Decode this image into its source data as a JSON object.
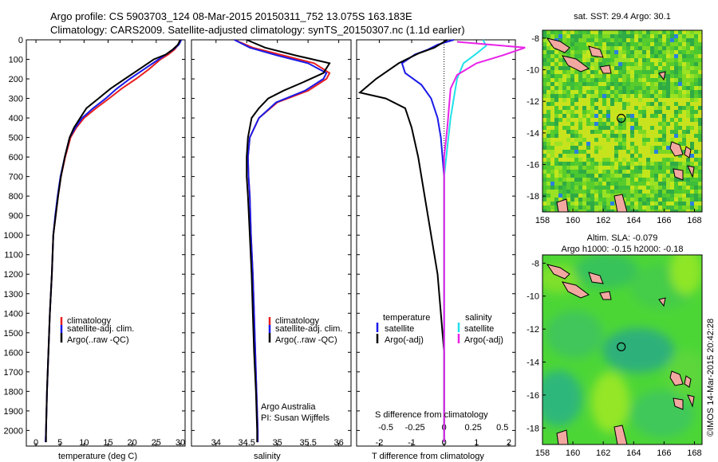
{
  "header": {
    "line1": "Argo profile: CS 5903703_124 08-Mar-2015 20150311_752 13.075S 163.183E",
    "line2": "Climatology: CARS2009. Satellite-adjusted climatology: synTS_20150307.nc (1.1d earlier)"
  },
  "colors": {
    "climatology": "#e82020",
    "satellite": "#1a1ae8",
    "argo": "#000000",
    "salinity_sat": "#22e0e8",
    "argo_adj": "#e822e8"
  },
  "credits": {
    "line1": "Argo Australia",
    "line2": "PI: Susan Wijffels",
    "imos": "©IMOS 14-Mar-2015 20:42:28"
  },
  "chart_data": [
    {
      "type": "line",
      "xlabel": "temperature (deg C)",
      "ylabel": "",
      "xlim": [
        -2,
        31
      ],
      "ylim": [
        2080,
        0
      ],
      "xticks": [
        0,
        5,
        10,
        15,
        20,
        25,
        30
      ],
      "yticks": [
        0,
        100,
        200,
        300,
        400,
        500,
        600,
        700,
        800,
        900,
        1000,
        1100,
        1200,
        1300,
        1400,
        1500,
        1600,
        1700,
        1800,
        1900,
        2000
      ],
      "legend": [
        "climatology",
        "satellite-adj. clim.",
        "Argo(..raw -QC)"
      ],
      "series": [
        {
          "name": "climatology",
          "color": "#e82020",
          "points": [
            [
              29.9,
              0
            ],
            [
              29.6,
              25
            ],
            [
              28.8,
              50
            ],
            [
              27.5,
              75
            ],
            [
              25.9,
              100
            ],
            [
              23.5,
              150
            ],
            [
              20.8,
              200
            ],
            [
              17.8,
              250
            ],
            [
              15.2,
              300
            ],
            [
              12.5,
              350
            ],
            [
              10.0,
              400
            ],
            [
              8.4,
              450
            ],
            [
              7.2,
              500
            ],
            [
              6.1,
              600
            ],
            [
              5.2,
              700
            ],
            [
              4.6,
              800
            ],
            [
              4.1,
              900
            ],
            [
              3.6,
              1000
            ],
            [
              3.3,
              1200
            ],
            [
              2.9,
              1400
            ],
            [
              2.6,
              1600
            ],
            [
              2.3,
              1800
            ],
            [
              2.1,
              2000
            ],
            [
              2.0,
              2060
            ]
          ]
        },
        {
          "name": "satellite-adj. clim.",
          "color": "#1a1ae8",
          "points": [
            [
              30.2,
              0
            ],
            [
              29.7,
              25
            ],
            [
              28.5,
              50
            ],
            [
              27.0,
              75
            ],
            [
              25.5,
              100
            ],
            [
              22.5,
              150
            ],
            [
              19.5,
              200
            ],
            [
              16.8,
              250
            ],
            [
              14.5,
              300
            ],
            [
              11.9,
              350
            ],
            [
              9.6,
              400
            ],
            [
              8.2,
              450
            ],
            [
              7.0,
              500
            ],
            [
              6.0,
              600
            ],
            [
              5.1,
              700
            ],
            [
              4.5,
              800
            ],
            [
              4.0,
              900
            ],
            [
              3.6,
              1000
            ],
            [
              3.3,
              1200
            ],
            [
              2.9,
              1400
            ],
            [
              2.6,
              1600
            ],
            [
              2.3,
              1800
            ],
            [
              2.1,
              2000
            ],
            [
              2.0,
              2060
            ]
          ]
        },
        {
          "name": "Argo(..raw -QC)",
          "color": "#000000",
          "points": [
            [
              30.0,
              0
            ],
            [
              29.5,
              25
            ],
            [
              28.4,
              50
            ],
            [
              27.0,
              75
            ],
            [
              24.5,
              100
            ],
            [
              21.5,
              150
            ],
            [
              18.5,
              200
            ],
            [
              15.5,
              250
            ],
            [
              13.0,
              300
            ],
            [
              10.5,
              350
            ],
            [
              9.2,
              400
            ],
            [
              7.9,
              450
            ],
            [
              7.0,
              500
            ],
            [
              6.0,
              600
            ],
            [
              5.2,
              700
            ],
            [
              4.6,
              800
            ],
            [
              4.1,
              900
            ],
            [
              3.6,
              1000
            ],
            [
              3.3,
              1200
            ],
            [
              2.9,
              1400
            ],
            [
              2.6,
              1600
            ],
            [
              2.3,
              1800
            ],
            [
              2.1,
              2000
            ],
            [
              2.1,
              2060
            ]
          ]
        }
      ]
    },
    {
      "type": "line",
      "xlabel": "salinity",
      "ylabel": "",
      "xlim": [
        33.6,
        36.2
      ],
      "ylim": [
        2080,
        0
      ],
      "xticks": [
        34,
        34.5,
        35,
        35.5,
        36
      ],
      "legend": [
        "climatology",
        "satellite-adj. clim.",
        "Argo(..raw -QC)"
      ],
      "series": [
        {
          "name": "climatology",
          "color": "#e82020",
          "points": [
            [
              34.3,
              0
            ],
            [
              34.6,
              40
            ],
            [
              35.1,
              80
            ],
            [
              35.6,
              120
            ],
            [
              35.85,
              170
            ],
            [
              35.8,
              200
            ],
            [
              35.5,
              260
            ],
            [
              35.0,
              320
            ],
            [
              34.7,
              400
            ],
            [
              34.55,
              500
            ],
            [
              34.52,
              600
            ],
            [
              34.53,
              700
            ],
            [
              34.55,
              800
            ],
            [
              34.57,
              1000
            ],
            [
              34.6,
              1200
            ],
            [
              34.62,
              1400
            ],
            [
              34.64,
              1600
            ],
            [
              34.66,
              1800
            ],
            [
              34.68,
              2000
            ],
            [
              34.68,
              2060
            ]
          ]
        },
        {
          "name": "satellite-adj. clim.",
          "color": "#1a1ae8",
          "points": [
            [
              34.3,
              0
            ],
            [
              34.55,
              40
            ],
            [
              35.0,
              80
            ],
            [
              35.5,
              120
            ],
            [
              35.8,
              170
            ],
            [
              35.75,
              200
            ],
            [
              35.45,
              260
            ],
            [
              34.98,
              320
            ],
            [
              34.7,
              400
            ],
            [
              34.55,
              500
            ],
            [
              34.52,
              600
            ],
            [
              34.53,
              700
            ],
            [
              34.55,
              800
            ],
            [
              34.57,
              1000
            ],
            [
              34.6,
              1200
            ],
            [
              34.62,
              1400
            ],
            [
              34.64,
              1600
            ],
            [
              34.66,
              1800
            ],
            [
              34.68,
              2000
            ],
            [
              34.68,
              2060
            ]
          ]
        },
        {
          "name": "Argo(..raw -QC)",
          "color": "#000000",
          "points": [
            [
              34.5,
              0
            ],
            [
              34.8,
              40
            ],
            [
              35.3,
              80
            ],
            [
              35.85,
              120
            ],
            [
              35.75,
              170
            ],
            [
              35.4,
              220
            ],
            [
              35.1,
              260
            ],
            [
              34.85,
              300
            ],
            [
              34.7,
              350
            ],
            [
              34.58,
              400
            ],
            [
              34.52,
              500
            ],
            [
              34.5,
              600
            ],
            [
              34.5,
              700
            ],
            [
              34.52,
              800
            ],
            [
              34.55,
              1000
            ],
            [
              34.58,
              1200
            ],
            [
              34.6,
              1400
            ],
            [
              34.62,
              1600
            ],
            [
              34.65,
              1800
            ],
            [
              34.67,
              2000
            ],
            [
              34.67,
              2060
            ]
          ]
        }
      ]
    },
    {
      "type": "line",
      "xlabel": "T difference from climatology",
      "xlabel_top": "S difference from climatology",
      "ylabel": "",
      "xlim": [
        -2.7,
        2.2
      ],
      "ylim": [
        2080,
        0
      ],
      "xticks": [
        -2,
        -1,
        0,
        1,
        2
      ],
      "xticks_s": [
        "-0.5",
        "-0.25",
        "0",
        "0.25",
        "0.5"
      ],
      "legend_t": {
        "title": "temperature",
        "items": [
          "satellite",
          "Argo(-adj)"
        ]
      },
      "legend_s": {
        "title": "salinity",
        "items": [
          "satellite",
          "Argo(-adj)"
        ]
      },
      "series": [
        {
          "name": "temperature satellite",
          "color": "#1a1ae8",
          "points": [
            [
              0.3,
              0
            ],
            [
              -0.2,
              25
            ],
            [
              -0.5,
              50
            ],
            [
              -0.9,
              75
            ],
            [
              -1.3,
              120
            ],
            [
              -1.2,
              170
            ],
            [
              -0.7,
              230
            ],
            [
              -0.4,
              300
            ],
            [
              -0.2,
              400
            ],
            [
              -0.1,
              500
            ],
            [
              0,
              700
            ],
            [
              0,
              2060
            ]
          ]
        },
        {
          "name": "temperature Argo(-adj)",
          "color": "#000000",
          "points": [
            [
              0.1,
              0
            ],
            [
              -0.3,
              40
            ],
            [
              -0.8,
              70
            ],
            [
              -1.4,
              120
            ],
            [
              -2.1,
              200
            ],
            [
              -2.6,
              270
            ],
            [
              -1.8,
              300
            ],
            [
              -1.2,
              350
            ],
            [
              -1.0,
              450
            ],
            [
              -0.8,
              600
            ],
            [
              -0.6,
              800
            ],
            [
              -0.4,
              1000
            ],
            [
              -0.2,
              1200
            ],
            [
              -0.1,
              1400
            ],
            [
              0,
              1600
            ],
            [
              0,
              2060
            ]
          ]
        },
        {
          "name": "salinity satellite",
          "color": "#22e0e8",
          "points": [
            [
              1.2,
              0
            ],
            [
              1.3,
              30
            ],
            [
              1.0,
              70
            ],
            [
              0.6,
              120
            ],
            [
              0.4,
              200
            ],
            [
              0.3,
              300
            ],
            [
              0.2,
              400
            ],
            [
              0.1,
              550
            ],
            [
              0,
              700
            ],
            [
              0,
              2060
            ]
          ]
        },
        {
          "name": "salinity Argo(-adj)",
          "color": "#e822e8",
          "points": [
            [
              0.4,
              10
            ],
            [
              2.5,
              40
            ],
            [
              1.8,
              80
            ],
            [
              1.0,
              120
            ],
            [
              0.4,
              180
            ],
            [
              0.2,
              250
            ],
            [
              0.15,
              350
            ],
            [
              0.1,
              450
            ],
            [
              0,
              600
            ],
            [
              0,
              2060
            ]
          ]
        }
      ]
    },
    {
      "type": "heatmap",
      "title": "sat. SST: 29.4 Argo: 30.1",
      "xticks": [
        158,
        160,
        162,
        164,
        166,
        168
      ],
      "yticks": [
        -8,
        -10,
        -12,
        -14,
        -16,
        -18
      ],
      "xlim": [
        158,
        168.5
      ],
      "ylim": [
        -19,
        -7.5
      ],
      "marker": {
        "lon": 163.183,
        "lat": -13.075
      }
    },
    {
      "type": "heatmap",
      "title": "Altim. SLA: -0.079",
      "subtitle": "Argo h1000: -0.15 h2000: -0.18",
      "xticks": [
        158,
        160,
        162,
        164,
        166,
        168
      ],
      "yticks": [
        -8,
        -10,
        -12,
        -14,
        -16,
        -18
      ],
      "xlim": [
        158,
        168.5
      ],
      "ylim": [
        -19,
        -7.5
      ],
      "marker": {
        "lon": 163.183,
        "lat": -13.075
      }
    }
  ]
}
